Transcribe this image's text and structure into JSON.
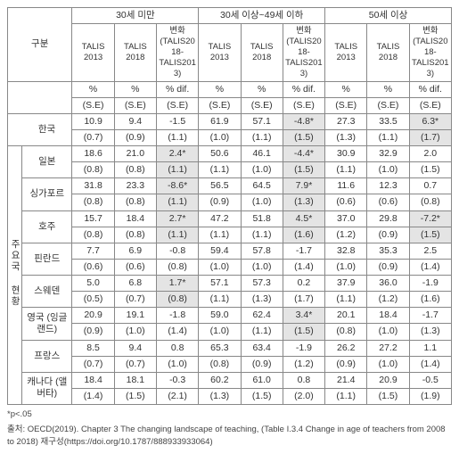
{
  "header": {
    "gubun": "구분",
    "groups": [
      {
        "label": "30세 미만"
      },
      {
        "label": "30세 이상~49세 이하"
      },
      {
        "label": "50세 이상"
      }
    ],
    "cols": {
      "t2013": "TALIS 2013",
      "t2018": "TALIS 2018",
      "diff": "변화 (TALIS2018-TALIS2013)"
    },
    "unit_pct": "%",
    "unit_se": "(S.E)",
    "unit_pdif": "% dif.",
    "unit_se2": "(S.E)"
  },
  "sidecat": "주요국 현황",
  "rows": [
    {
      "name": "한국",
      "vals": [
        "10.9",
        "9.4",
        "-1.5",
        "61.9",
        "57.1",
        "-4.8*",
        "27.3",
        "33.5",
        "6.3*"
      ],
      "ses": [
        "(0.7)",
        "(0.9)",
        "(1.1)",
        "(1.0)",
        "(1.1)",
        "(1.5)",
        "(1.3)",
        "(1.1)",
        "(1.7)"
      ],
      "hl": [
        0,
        0,
        0,
        0,
        0,
        1,
        0,
        0,
        1
      ]
    },
    {
      "name": "일본",
      "vals": [
        "18.6",
        "21.0",
        "2.4*",
        "50.6",
        "46.1",
        "-4.4*",
        "30.9",
        "32.9",
        "2.0"
      ],
      "ses": [
        "(0.8)",
        "(0.8)",
        "(1.1)",
        "(1.1)",
        "(1.0)",
        "(1.5)",
        "(1.1)",
        "(1.0)",
        "(1.5)"
      ],
      "hl": [
        0,
        0,
        1,
        0,
        0,
        1,
        0,
        0,
        0
      ]
    },
    {
      "name": "싱가포르",
      "vals": [
        "31.8",
        "23.3",
        "-8.6*",
        "56.5",
        "64.5",
        "7.9*",
        "11.6",
        "12.3",
        "0.7"
      ],
      "ses": [
        "(0.8)",
        "(0.8)",
        "(1.1)",
        "(0.9)",
        "(1.0)",
        "(1.3)",
        "(0.6)",
        "(0.6)",
        "(0.8)"
      ],
      "hl": [
        0,
        0,
        1,
        0,
        0,
        1,
        0,
        0,
        0
      ]
    },
    {
      "name": "호주",
      "vals": [
        "15.7",
        "18.4",
        "2.7*",
        "47.2",
        "51.8",
        "4.5*",
        "37.0",
        "29.8",
        "-7.2*"
      ],
      "ses": [
        "(0.8)",
        "(0.8)",
        "(1.1)",
        "(1.1)",
        "(1.1)",
        "(1.6)",
        "(1.2)",
        "(0.9)",
        "(1.5)"
      ],
      "hl": [
        0,
        0,
        1,
        0,
        0,
        1,
        0,
        0,
        1
      ]
    },
    {
      "name": "핀란드",
      "vals": [
        "7.7",
        "6.9",
        "-0.8",
        "59.4",
        "57.8",
        "-1.7",
        "32.8",
        "35.3",
        "2.5"
      ],
      "ses": [
        "(0.6)",
        "(0.6)",
        "(0.8)",
        "(1.0)",
        "(1.0)",
        "(1.4)",
        "(1.0)",
        "(0.9)",
        "(1.4)"
      ],
      "hl": [
        0,
        0,
        0,
        0,
        0,
        0,
        0,
        0,
        0
      ]
    },
    {
      "name": "스웨덴",
      "vals": [
        "5.0",
        "6.8",
        "1.7*",
        "57.1",
        "57.3",
        "0.2",
        "37.9",
        "36.0",
        "-1.9"
      ],
      "ses": [
        "(0.5)",
        "(0.7)",
        "(0.8)",
        "(1.1)",
        "(1.3)",
        "(1.7)",
        "(1.1)",
        "(1.2)",
        "(1.6)"
      ],
      "hl": [
        0,
        0,
        1,
        0,
        0,
        0,
        0,
        0,
        0
      ]
    },
    {
      "name": "영국 (잉글랜드)",
      "vals": [
        "20.9",
        "19.1",
        "-1.8",
        "59.0",
        "62.4",
        "3.4*",
        "20.1",
        "18.4",
        "-1.7"
      ],
      "ses": [
        "(0.9)",
        "(1.0)",
        "(1.4)",
        "(1.0)",
        "(1.1)",
        "(1.5)",
        "(0.8)",
        "(1.0)",
        "(1.3)"
      ],
      "hl": [
        0,
        0,
        0,
        0,
        0,
        1,
        0,
        0,
        0
      ]
    },
    {
      "name": "프랑스",
      "vals": [
        "8.5",
        "9.4",
        "0.8",
        "65.3",
        "63.4",
        "-1.9",
        "26.2",
        "27.2",
        "1.1"
      ],
      "ses": [
        "(0.7)",
        "(0.7)",
        "(1.0)",
        "(0.8)",
        "(0.9)",
        "(1.2)",
        "(0.9)",
        "(1.0)",
        "(1.4)"
      ],
      "hl": [
        0,
        0,
        0,
        0,
        0,
        0,
        0,
        0,
        0
      ]
    },
    {
      "name": "캐나다 (앨버타)",
      "vals": [
        "18.4",
        "18.1",
        "-0.3",
        "60.2",
        "61.0",
        "0.8",
        "21.4",
        "20.9",
        "-0.5"
      ],
      "ses": [
        "(1.4)",
        "(1.5)",
        "(2.1)",
        "(1.3)",
        "(1.5)",
        "(2.0)",
        "(1.1)",
        "(1.5)",
        "(1.9)"
      ],
      "hl": [
        0,
        0,
        0,
        0,
        0,
        0,
        0,
        0,
        0
      ]
    }
  ],
  "footnotes": {
    "p": "*p<.05",
    "src": "출처: OECD(2019). Chapter 3 The changing landscape of teaching, (Table I.3.4 Change in age of teachers from 2008 to 2018) 재구성(https://doi.org/10.1787/888933933064)"
  }
}
